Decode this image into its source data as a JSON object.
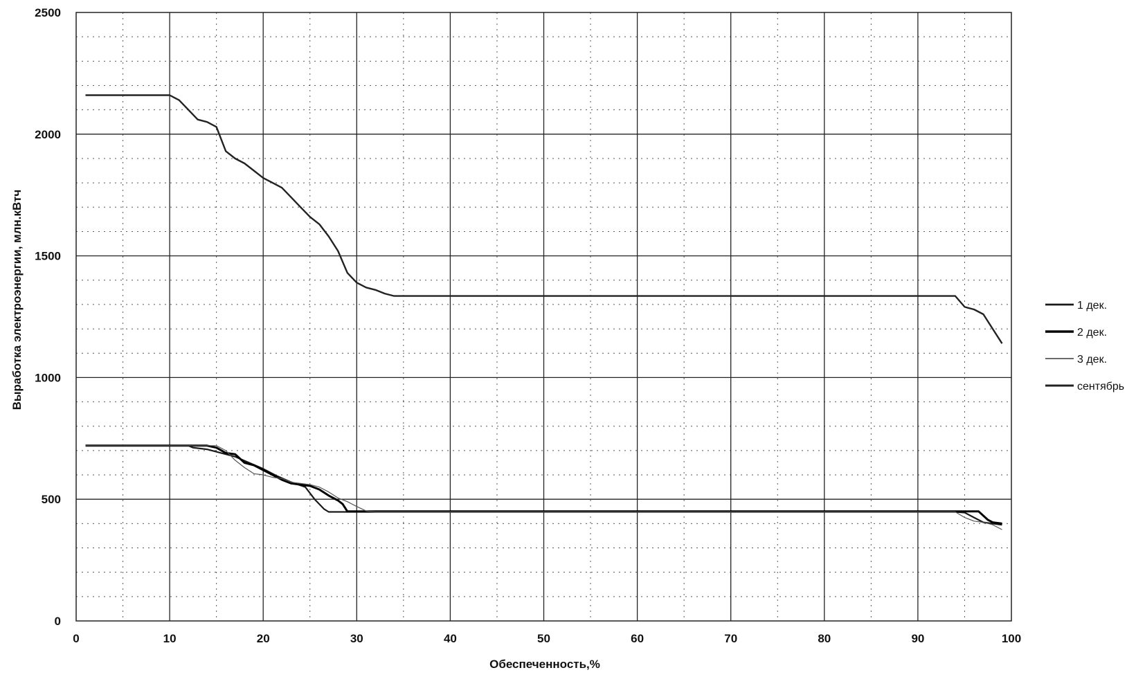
{
  "chart_data": {
    "type": "line",
    "title": "",
    "xlabel": "Обеспеченность,%",
    "ylabel": "Выработка электроэнергии, млн.кВтч",
    "xlim": [
      0,
      100
    ],
    "ylim": [
      0,
      2500
    ],
    "x_ticks": [
      "0",
      "10",
      "20",
      "30",
      "40",
      "50",
      "60",
      "70",
      "80",
      "90",
      "100"
    ],
    "y_ticks": [
      "0",
      "500",
      "1000",
      "1500",
      "2000",
      "2500"
    ],
    "major_grid": true,
    "minor_grid": "dotted",
    "legend_position": "right",
    "series": [
      {
        "name": "1 дек.",
        "color": "#1a1a1a",
        "points": [
          [
            1,
            720
          ],
          [
            12,
            720
          ],
          [
            12.5,
            712
          ],
          [
            14,
            705
          ],
          [
            15.5,
            690
          ],
          [
            17,
            675
          ],
          [
            18.5,
            650
          ],
          [
            20,
            625
          ],
          [
            21.5,
            595
          ],
          [
            23,
            570
          ],
          [
            24.5,
            550
          ],
          [
            25.5,
            500
          ],
          [
            26.5,
            460
          ],
          [
            27,
            448
          ],
          [
            31.5,
            448
          ],
          [
            94,
            448
          ],
          [
            95,
            445
          ],
          [
            96,
            425
          ],
          [
            97,
            405
          ],
          [
            98,
            400
          ],
          [
            99,
            395
          ]
        ]
      },
      {
        "name": "2 дек.",
        "color": "#000000",
        "points": [
          [
            1,
            720
          ],
          [
            12,
            720
          ],
          [
            14,
            720
          ],
          [
            15,
            712
          ],
          [
            16,
            690
          ],
          [
            17,
            685
          ],
          [
            18,
            650
          ],
          [
            19,
            640
          ],
          [
            20,
            620
          ],
          [
            21,
            600
          ],
          [
            22,
            580
          ],
          [
            23,
            565
          ],
          [
            24,
            560
          ],
          [
            25,
            555
          ],
          [
            26,
            540
          ],
          [
            27,
            515
          ],
          [
            28,
            495
          ],
          [
            28.5,
            480
          ],
          [
            29,
            450
          ],
          [
            94,
            450
          ],
          [
            96.5,
            450
          ],
          [
            97.5,
            415
          ],
          [
            98,
            405
          ],
          [
            99,
            400
          ]
        ]
      },
      {
        "name": "3 дек.",
        "color": "#555555",
        "points": [
          [
            1,
            720
          ],
          [
            12,
            720
          ],
          [
            15,
            720
          ],
          [
            16,
            700
          ],
          [
            17,
            660
          ],
          [
            18,
            630
          ],
          [
            19,
            605
          ],
          [
            20,
            600
          ],
          [
            21,
            590
          ],
          [
            22,
            585
          ],
          [
            23,
            570
          ],
          [
            24,
            565
          ],
          [
            25,
            560
          ],
          [
            26,
            550
          ],
          [
            27,
            530
          ],
          [
            28,
            505
          ],
          [
            29,
            490
          ],
          [
            30,
            470
          ],
          [
            31,
            452
          ],
          [
            32,
            448
          ],
          [
            94,
            448
          ],
          [
            95,
            425
          ],
          [
            96,
            410
          ],
          [
            97,
            405
          ],
          [
            98,
            395
          ],
          [
            99,
            375
          ]
        ]
      },
      {
        "name": "сентябрь",
        "color": "#222222",
        "points": [
          [
            1,
            2160
          ],
          [
            10,
            2160
          ],
          [
            11,
            2140
          ],
          [
            12,
            2100
          ],
          [
            13,
            2060
          ],
          [
            14,
            2050
          ],
          [
            15,
            2030
          ],
          [
            16,
            1930
          ],
          [
            17,
            1900
          ],
          [
            18,
            1880
          ],
          [
            19,
            1850
          ],
          [
            20,
            1820
          ],
          [
            21,
            1800
          ],
          [
            22,
            1780
          ],
          [
            23,
            1740
          ],
          [
            24,
            1700
          ],
          [
            25,
            1660
          ],
          [
            26,
            1630
          ],
          [
            27,
            1580
          ],
          [
            28,
            1520
          ],
          [
            29,
            1430
          ],
          [
            30,
            1390
          ],
          [
            31,
            1370
          ],
          [
            32,
            1360
          ],
          [
            33,
            1345
          ],
          [
            34,
            1335
          ],
          [
            94,
            1335
          ],
          [
            95,
            1290
          ],
          [
            96,
            1280
          ],
          [
            97,
            1260
          ],
          [
            98,
            1200
          ],
          [
            99,
            1140
          ]
        ]
      }
    ]
  }
}
